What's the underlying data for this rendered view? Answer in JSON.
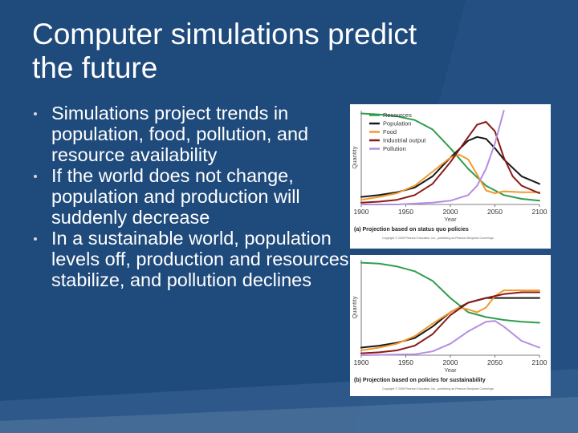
{
  "title": {
    "line1": "Computer simulations predict",
    "line2": "the future"
  },
  "bullets": [
    "Simulations project trends in population, food, pollution, and resource availability",
    "If the world does not change, population and production will suddenly decrease",
    "In a sustainable world, population levels off, production and resources stabilize, and pollution declines"
  ],
  "colors": {
    "background": "#1f4a7c",
    "Resources": "#2e9e4b",
    "Population": "#1a1a1a",
    "Food": "#f29a2e",
    "Industrial output": "#8b1a1a",
    "Pollution": "#b48ee0"
  },
  "chart_data": [
    {
      "type": "line",
      "caption": "(a) Projection based on status quo policies",
      "copyright": "Copyright © 2008 Pearson Education, Inc., publishing as Pearson Benjamin Cummings.",
      "xlabel": "Year",
      "ylabel": "Quantity",
      "xlim": [
        1900,
        2100
      ],
      "ylim": [
        0,
        1
      ],
      "xticks": [
        1900,
        1950,
        2000,
        2050,
        2100
      ],
      "legend_position": "top-left",
      "grid": false,
      "series": [
        {
          "name": "Resources",
          "x": [
            1900,
            1920,
            1940,
            1960,
            1980,
            2000,
            2020,
            2040,
            2060,
            2080,
            2100
          ],
          "y": [
            0.97,
            0.96,
            0.94,
            0.9,
            0.8,
            0.6,
            0.38,
            0.2,
            0.1,
            0.06,
            0.04
          ]
        },
        {
          "name": "Population",
          "x": [
            1900,
            1920,
            1940,
            1960,
            1980,
            2000,
            2020,
            2030,
            2040,
            2050,
            2060,
            2080,
            2100
          ],
          "y": [
            0.08,
            0.1,
            0.13,
            0.18,
            0.3,
            0.5,
            0.68,
            0.72,
            0.7,
            0.6,
            0.48,
            0.3,
            0.22
          ]
        },
        {
          "name": "Food",
          "x": [
            1900,
            1920,
            1940,
            1960,
            1980,
            2000,
            2010,
            2020,
            2030,
            2040,
            2050,
            2060,
            2080,
            2100
          ],
          "y": [
            0.05,
            0.08,
            0.12,
            0.2,
            0.35,
            0.5,
            0.53,
            0.48,
            0.32,
            0.15,
            0.12,
            0.14,
            0.13,
            0.13
          ]
        },
        {
          "name": "Industrial output",
          "x": [
            1900,
            1920,
            1940,
            1960,
            1980,
            2000,
            2020,
            2030,
            2040,
            2050,
            2060,
            2070,
            2080,
            2100
          ],
          "y": [
            0.02,
            0.03,
            0.05,
            0.1,
            0.22,
            0.45,
            0.72,
            0.85,
            0.88,
            0.78,
            0.5,
            0.3,
            0.2,
            0.12
          ]
        },
        {
          "name": "Pollution",
          "x": [
            1900,
            1940,
            1980,
            2000,
            2020,
            2030,
            2040,
            2050,
            2060
          ],
          "y": [
            0,
            0,
            0.02,
            0.04,
            0.1,
            0.2,
            0.38,
            0.65,
            1.0
          ]
        }
      ]
    },
    {
      "type": "line",
      "caption": "(b) Projection based on policies for sustainability",
      "copyright": "Copyright © 2008 Pearson Education, Inc., publishing as Pearson Benjamin Cummings.",
      "xlabel": "Year",
      "ylabel": "Quantity",
      "xlim": [
        1900,
        2100
      ],
      "ylim": [
        0,
        1
      ],
      "xticks": [
        1900,
        1950,
        2000,
        2050,
        2100
      ],
      "grid": false,
      "series": [
        {
          "name": "Resources",
          "x": [
            1900,
            1920,
            1940,
            1960,
            1980,
            2000,
            2020,
            2040,
            2060,
            2080,
            2100
          ],
          "y": [
            0.97,
            0.96,
            0.93,
            0.88,
            0.78,
            0.6,
            0.45,
            0.4,
            0.37,
            0.35,
            0.34
          ]
        },
        {
          "name": "Population",
          "x": [
            1900,
            1920,
            1940,
            1960,
            1980,
            2000,
            2020,
            2040,
            2060,
            2080,
            2100
          ],
          "y": [
            0.08,
            0.1,
            0.13,
            0.18,
            0.3,
            0.45,
            0.55,
            0.6,
            0.6,
            0.6,
            0.6
          ]
        },
        {
          "name": "Food",
          "x": [
            1900,
            1920,
            1940,
            1960,
            1980,
            2000,
            2010,
            2020,
            2030,
            2040,
            2050,
            2060,
            2080,
            2100
          ],
          "y": [
            0.05,
            0.08,
            0.12,
            0.2,
            0.33,
            0.45,
            0.5,
            0.48,
            0.45,
            0.5,
            0.62,
            0.68,
            0.68,
            0.68
          ]
        },
        {
          "name": "Industrial output",
          "x": [
            1900,
            1920,
            1940,
            1960,
            1980,
            2000,
            2020,
            2040,
            2060,
            2080,
            2100
          ],
          "y": [
            0.02,
            0.03,
            0.05,
            0.1,
            0.22,
            0.42,
            0.55,
            0.6,
            0.64,
            0.66,
            0.66
          ]
        },
        {
          "name": "Pollution",
          "x": [
            1900,
            1960,
            1980,
            2000,
            2020,
            2040,
            2050,
            2060,
            2080,
            2100
          ],
          "y": [
            0,
            0.01,
            0.04,
            0.12,
            0.25,
            0.35,
            0.36,
            0.3,
            0.15,
            0.08
          ]
        }
      ]
    }
  ]
}
